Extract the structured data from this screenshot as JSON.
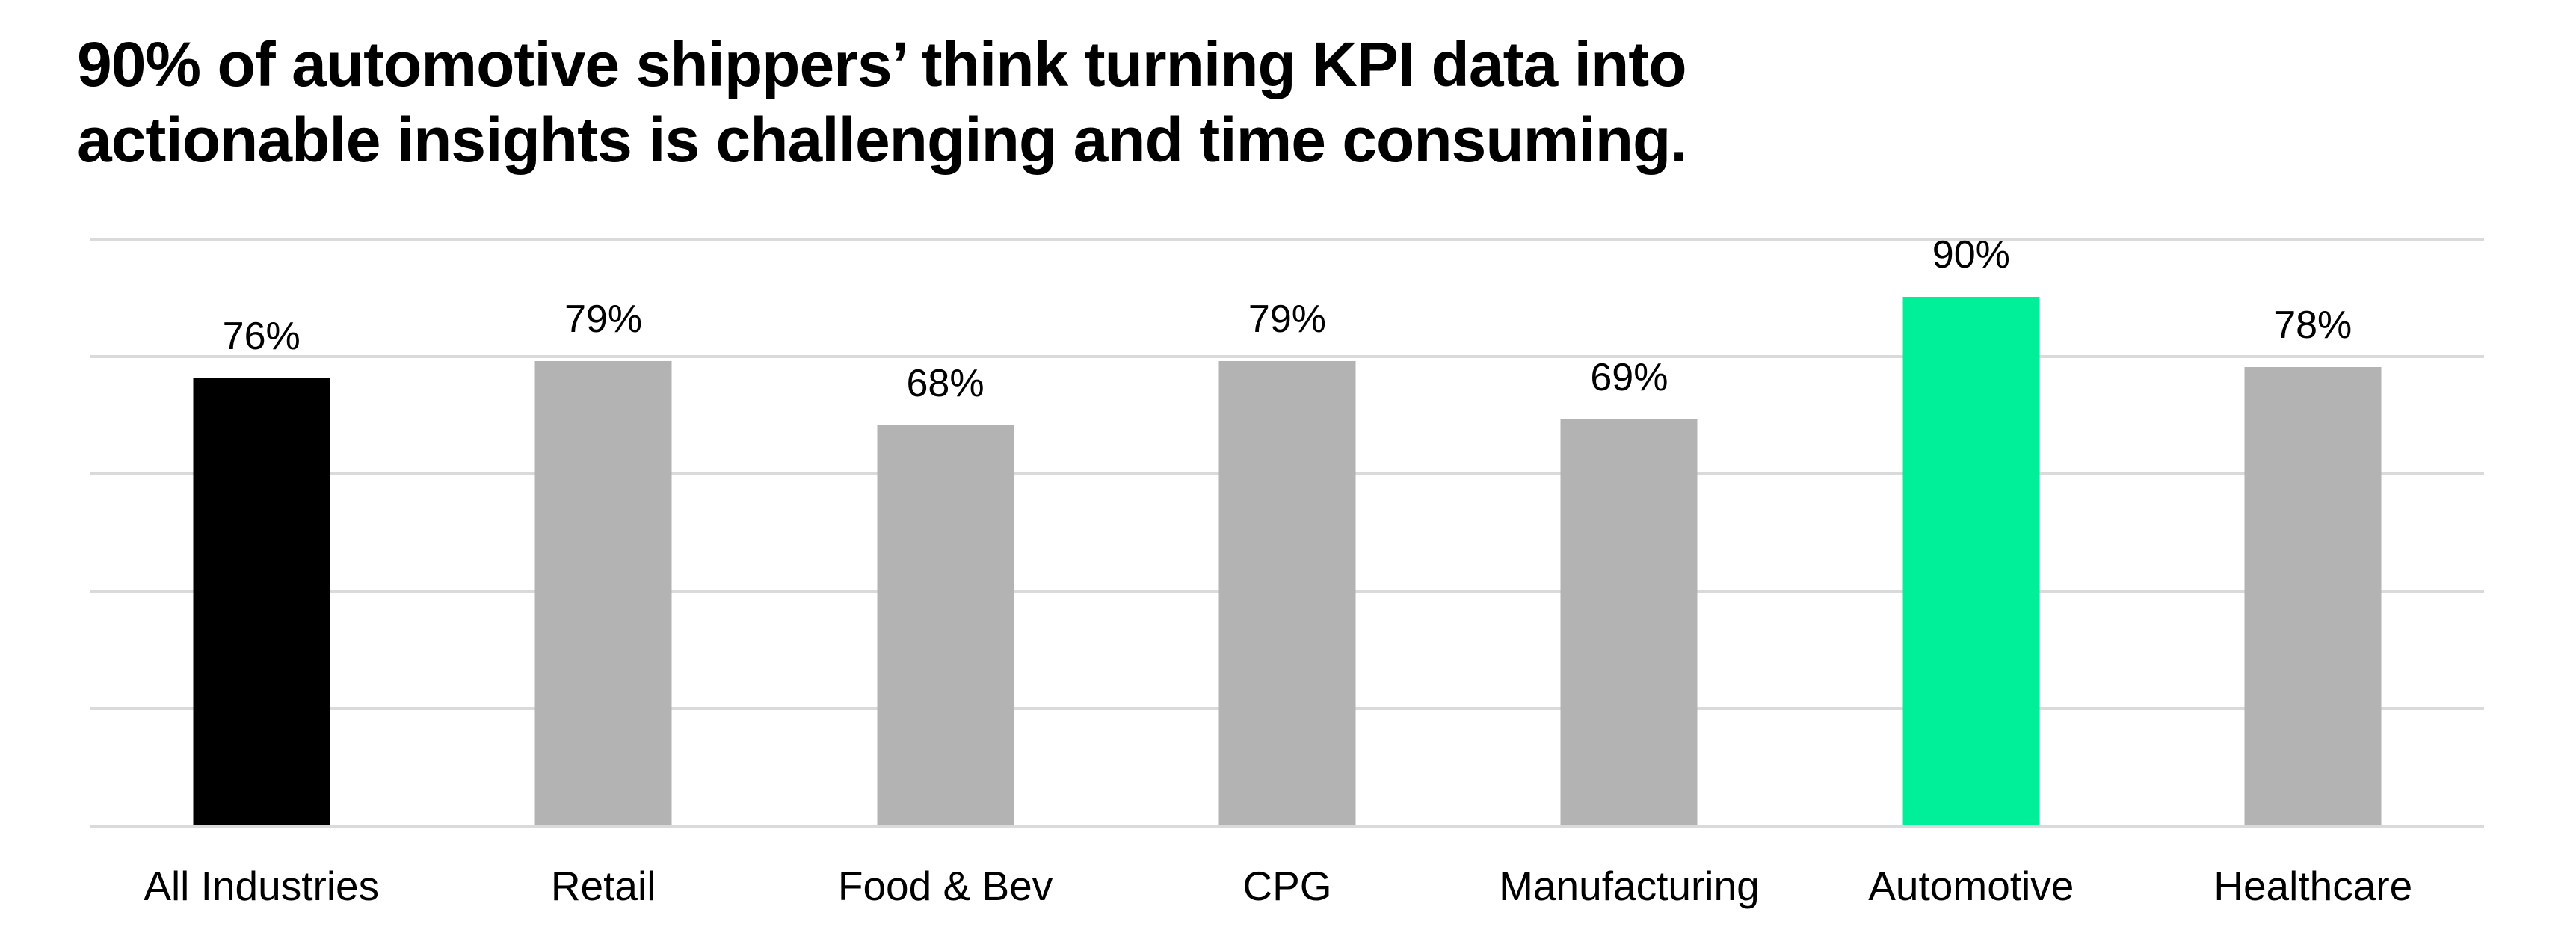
{
  "title": {
    "line1": "90% of automotive shippers’ think turning KPI data into",
    "line2": "actionable insights is challenging and time consuming."
  },
  "colors": {
    "background": "#FFFFFF",
    "text": "#000000",
    "gridline": "#DADADA",
    "default_bar": "#B3B3B3",
    "accent_bar": "#000000",
    "highlight_bar": "#00F09A"
  },
  "chart_data": {
    "type": "bar",
    "title": "90% of automotive shippers’ think turning KPI data into actionable insights is challenging and time consuming.",
    "categories": [
      "All Industries",
      "Retail",
      "Food & Bev",
      "CPG",
      "Manufacturing",
      "Automotive",
      "Healthcare"
    ],
    "values": [
      76,
      79,
      68,
      79,
      69,
      90,
      78
    ],
    "value_labels": [
      "76%",
      "79%",
      "68%",
      "79%",
      "69%",
      "90%",
      "78%"
    ],
    "bar_colors": [
      "#000000",
      "#B3B3B3",
      "#B3B3B3",
      "#B3B3B3",
      "#B3B3B3",
      "#00F09A",
      "#B3B3B3"
    ],
    "highlighted_category": "Automotive",
    "xlabel": "",
    "ylabel": "",
    "ylim": [
      0,
      100
    ],
    "gridlines_percent": [
      0,
      20,
      40,
      60,
      80,
      100
    ],
    "grid": "horizontal",
    "legend": "none",
    "y_tick_labels_visible": false
  }
}
